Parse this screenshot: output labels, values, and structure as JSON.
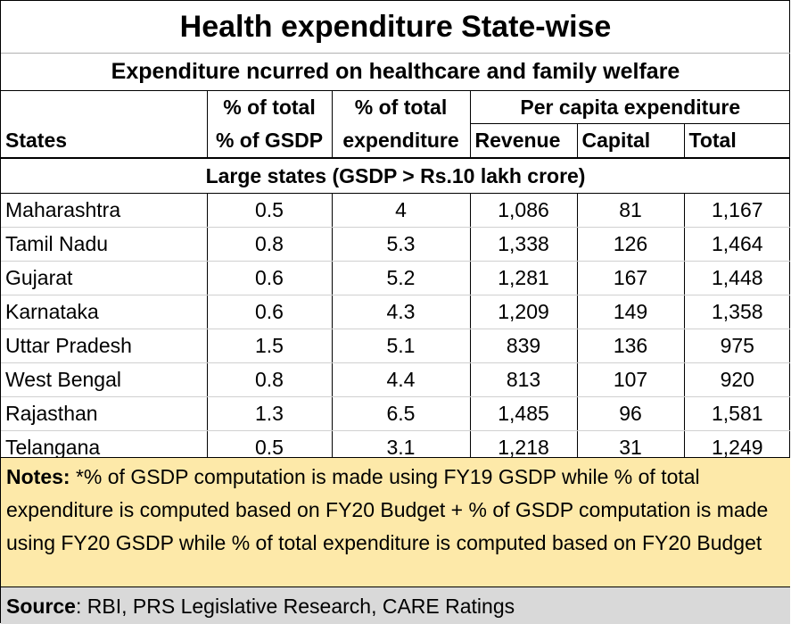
{
  "title": "Health expenditure State-wise",
  "subtitle": "Expenditure  ncurred on healthcare and family welfare",
  "header": {
    "row1": [
      "",
      "% of total",
      "% of total",
      "Per capita expenditure"
    ],
    "row2": [
      "States",
      "% of GSDP",
      "expenditure",
      "Revenue",
      "Capital",
      "Total"
    ]
  },
  "section_label": "Large states (GSDP > Rs.10 lakh crore)",
  "rows": [
    {
      "state": "Maharashtra",
      "gsdp": "0.5",
      "exp": "4",
      "revenue": "1,086",
      "capital": "81",
      "total": "1,167"
    },
    {
      "state": "Tamil Nadu",
      "gsdp": "0.8",
      "exp": "5.3",
      "revenue": "1,338",
      "capital": "126",
      "total": "1,464"
    },
    {
      "state": "Gujarat",
      "gsdp": "0.6",
      "exp": "5.2",
      "revenue": "1,281",
      "capital": "167",
      "total": "1,448"
    },
    {
      "state": "Karnataka",
      "gsdp": "0.6",
      "exp": "4.3",
      "revenue": "1,209",
      "capital": "149",
      "total": "1,358"
    },
    {
      "state": "Uttar Pradesh",
      "gsdp": "1.5",
      "exp": "5.1",
      "revenue": "839",
      "capital": "136",
      "total": "975"
    },
    {
      "state": "West Bengal",
      "gsdp": "0.8",
      "exp": "4.4",
      "revenue": "813",
      "capital": "107",
      "total": "920"
    },
    {
      "state": "Rajasthan",
      "gsdp": "1.3",
      "exp": "6.5",
      "revenue": "1,485",
      "capital": "96",
      "total": "1,581"
    },
    {
      "state": "Telangana",
      "gsdp": "0.5",
      "exp": "3.1",
      "revenue": "1,218",
      "capital": "31",
      "total": "1,249"
    }
  ],
  "notes": {
    "label": "Notes:",
    "text": " *% of GSDP computation is made using FY19 GSDP while % of total expenditure is computed based on FY20 Budget + % of GSDP computation is made using FY20 GSDP while % of total expenditure is computed based on FY20 Budget"
  },
  "source": {
    "label": "Source",
    "text": ": RBI, PRS Legislative Research, CARE Ratings"
  },
  "colors": {
    "notes_background": "#fde9a9",
    "source_background": "#d9d9d9"
  }
}
